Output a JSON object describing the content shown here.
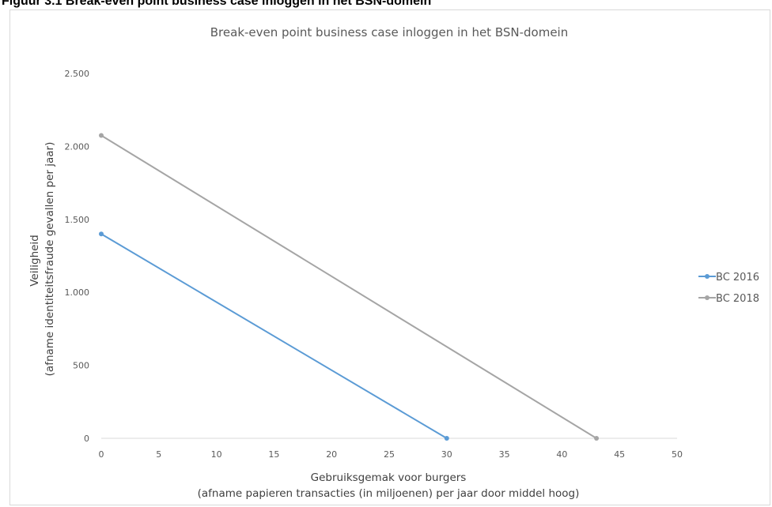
{
  "figure_caption": "Figuur 3.1  Break-even point business case inloggen in het BSN-domein",
  "colors": {
    "bc2016": "#5b9bd5",
    "bc2018": "#a5a5a5",
    "axis": "#d9d9d9",
    "text": "#595959"
  },
  "chart_data": {
    "type": "line",
    "title": "Break-even point business case inloggen in het BSN-domein",
    "xlabel": [
      "Gebruiksgemak voor burgers",
      "(afname papieren transacties (in miljoenen) per jaar door middel hoog)"
    ],
    "ylabel": [
      "Veiligheid",
      "(afname identiteitsfraude gevallen per jaar)"
    ],
    "xlim": [
      0,
      50
    ],
    "ylim": [
      0,
      2500
    ],
    "x_ticks": [
      0,
      5,
      10,
      15,
      20,
      25,
      30,
      35,
      40,
      45,
      50
    ],
    "x_tick_labels": [
      "0",
      "5",
      "10",
      "15",
      "20",
      "25",
      "30",
      "35",
      "40",
      "45",
      "50"
    ],
    "y_ticks": [
      0,
      500,
      1000,
      1500,
      2000,
      2500
    ],
    "y_tick_labels": [
      "0",
      "500",
      "1.000",
      "1.500",
      "2.000",
      "2.500"
    ],
    "grid": false,
    "legend_position": "right",
    "series": [
      {
        "name": "BC 2016",
        "color": "#5b9bd5",
        "points": [
          [
            0,
            1400
          ],
          [
            30,
            0
          ]
        ]
      },
      {
        "name": "BC 2018",
        "color": "#a5a5a5",
        "points": [
          [
            0,
            2075
          ],
          [
            43,
            0
          ]
        ]
      }
    ]
  }
}
